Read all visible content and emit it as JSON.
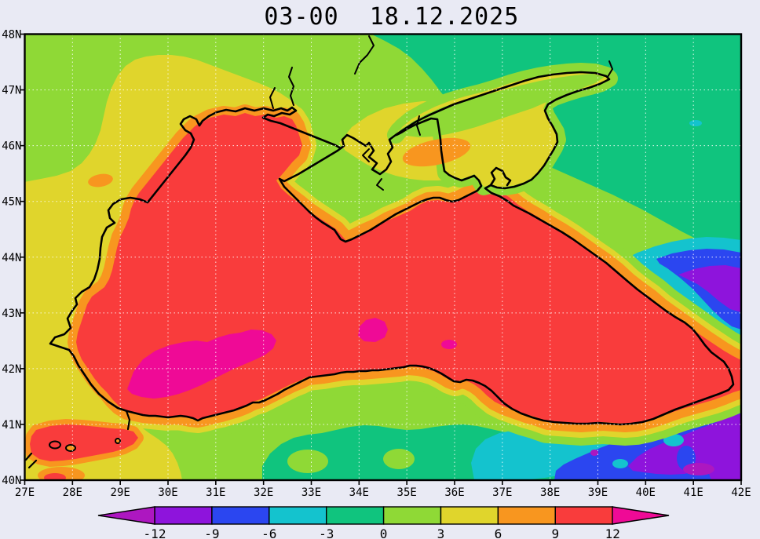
{
  "title": {
    "time": "03-00",
    "date": "18.12.2025"
  },
  "axes": {
    "lat_labels": [
      "48N",
      "47N",
      "46N",
      "45N",
      "44N",
      "43N",
      "42N",
      "41N",
      "40N"
    ],
    "lon_labels": [
      "27E",
      "28E",
      "29E",
      "30E",
      "31E",
      "32E",
      "33E",
      "34E",
      "35E",
      "36E",
      "37E",
      "38E",
      "39E",
      "40E",
      "41E",
      "42E"
    ]
  },
  "colorbar": {
    "tick_labels": [
      "-12",
      "-9",
      "-6",
      "-3",
      "0",
      "3",
      "6",
      "9",
      "12"
    ],
    "segment_colors": [
      "#8E14DC",
      "#2B46F0",
      "#14C3CE",
      "#10C47E",
      "#8FD936",
      "#E0D52C",
      "#F8961F",
      "#F93C3C"
    ],
    "arrow_left_color": "#AD17C0",
    "arrow_right_color": "#EF0A96"
  },
  "palette": {
    "background": "#E9EAF4",
    "below_m12": "#AD17C0",
    "m12_m9": "#8E14DC",
    "m9_m6": "#2B46F0",
    "m6_m3": "#14C3CE",
    "m3_0": "#10C47E",
    "p0_3": "#8FD936",
    "p3_6": "#E0D52C",
    "p6_9": "#F8961F",
    "p9_12": "#F93C3C",
    "above_12": "#EF0A96",
    "coastline": "#000000",
    "grid": "#FFFFFF"
  }
}
